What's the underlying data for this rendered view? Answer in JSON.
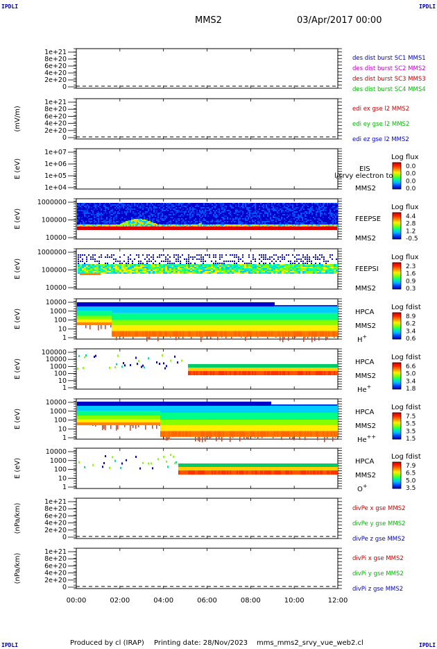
{
  "header": {
    "corner_tl": "IPDLI",
    "corner_tr": "IPDLI",
    "corner_bl": "IPDLI",
    "corner_br": "IPDLI",
    "spacecraft": "MMS2",
    "date": "03/Apr/2017 00:00"
  },
  "footer": {
    "produced_by": "Produced by cl (IRAP)",
    "printing_date": "Printing date: 28/Nov/2023",
    "filename": "mms_mms2_srvy_vue_web2.cl"
  },
  "colors": {
    "blue": "#0000cc",
    "magenta": "#cc00cc",
    "red": "#cc0000",
    "green": "#00bb00"
  },
  "chart_data": [
    {
      "type": "line",
      "ylabel": "",
      "yticks": [
        "1e+21",
        "8e+20",
        "6e+20",
        "4e+20",
        "2e+20",
        "0"
      ],
      "ylim": [
        0,
        1e+21
      ],
      "legend": [
        {
          "text": "des dist burst SC1 MMS1",
          "color": "#0000cc"
        },
        {
          "text": "des dist burst SC2 MMS2",
          "color": "#cc00cc"
        },
        {
          "text": "des dist burst SC3 MMS3",
          "color": "#cc0000"
        },
        {
          "text": "des dist burst SC4 MMS4",
          "color": "#00bb00"
        }
      ]
    },
    {
      "type": "line",
      "ylabel": "(mV/m)",
      "yticks": [
        "1e+21",
        "8e+20",
        "6e+20",
        "4e+20",
        "2e+20",
        "0"
      ],
      "ylim": [
        0,
        1e+21
      ],
      "legend": [
        {
          "text": "edi ex gse l2 MMS2",
          "color": "#cc0000"
        },
        {
          "text": "edi ey gse l2 MMS2",
          "color": "#00bb00"
        },
        {
          "text": "edi ez gse l2 MMS2",
          "color": "#0000cc"
        }
      ]
    },
    {
      "type": "heatmap",
      "ylabel": "E (eV)",
      "yticks": [
        "1e+07",
        "1e+06",
        "1e+05",
        "1e+04"
      ],
      "instrument": "EIS",
      "extra_label": "l/srvy electron to",
      "spacecraft": "MMS2",
      "colorbar_title": "Log flux",
      "colorbar_ticks": [
        "0.0",
        "0.0",
        "0.0",
        "0.0"
      ]
    },
    {
      "type": "heatmap",
      "ylabel": "E (eV)",
      "yticks": [
        "1000000",
        "100000",
        "10000"
      ],
      "instrument": "FEEPSE",
      "spacecraft": "MMS2",
      "colorbar_title": "Log flux",
      "colorbar_ticks": [
        "4.4",
        "2.8",
        "1.2",
        "-0.5"
      ]
    },
    {
      "type": "heatmap",
      "ylabel": "E (eV)",
      "yticks": [
        "1000000",
        "100000",
        "10000"
      ],
      "instrument": "FEEPSI",
      "spacecraft": "MMS2",
      "colorbar_title": "Log flux",
      "colorbar_ticks": [
        "2.3",
        "1.6",
        "0.9",
        "0.3"
      ]
    },
    {
      "type": "heatmap",
      "ylabel": "E (eV)",
      "yticks": [
        "10000",
        "1000",
        "100",
        "10",
        "1"
      ],
      "instrument": "HPCA",
      "spacecraft": "MMS2",
      "species": "H",
      "species_sup": "+",
      "colorbar_title": "Log fdist",
      "colorbar_ticks": [
        "8.9",
        "6.2",
        "3.4",
        "0.6"
      ]
    },
    {
      "type": "heatmap",
      "ylabel": "E (eV)",
      "yticks": [
        "100000",
        "10000",
        "1000",
        "100",
        "10",
        "1"
      ],
      "instrument": "HPCA",
      "spacecraft": "MMS2",
      "species": "He",
      "species_sup": "+",
      "colorbar_title": "Log fdist",
      "colorbar_ticks": [
        "6.6",
        "5.0",
        "3.4",
        "1.8"
      ]
    },
    {
      "type": "heatmap",
      "ylabel": "E (eV)",
      "yticks": [
        "10000",
        "1000",
        "100",
        "10",
        "1"
      ],
      "instrument": "HPCA",
      "spacecraft": "MMS2",
      "species": "He",
      "species_sup": "++",
      "colorbar_title": "Log fdist",
      "colorbar_ticks": [
        "7.5",
        "5.5",
        "3.5",
        "1.5"
      ]
    },
    {
      "type": "heatmap",
      "ylabel": "E (eV)",
      "yticks": [
        "10000",
        "1000",
        "100",
        "10",
        "1"
      ],
      "instrument": "HPCA",
      "spacecraft": "MMS2",
      "species": "O",
      "species_sup": "+",
      "colorbar_title": "Log fdist",
      "colorbar_ticks": [
        "7.9",
        "6.5",
        "5.0",
        "3.5"
      ]
    },
    {
      "type": "line",
      "ylabel": "(nPa/km)",
      "yticks": [
        "1e+21",
        "8e+20",
        "6e+20",
        "4e+20",
        "2e+20",
        "0"
      ],
      "ylim": [
        0,
        1e+21
      ],
      "legend": [
        {
          "text": "divPe x gse MMS2",
          "color": "#cc0000"
        },
        {
          "text": "divPe y gse MMS2",
          "color": "#00bb00"
        },
        {
          "text": "divPe z gse MMS2",
          "color": "#0000cc"
        }
      ]
    },
    {
      "type": "line",
      "ylabel": "(nPa/km)",
      "yticks": [
        "1e+21",
        "8e+20",
        "6e+20",
        "4e+20",
        "2e+20",
        "0"
      ],
      "ylim": [
        0,
        1e+21
      ],
      "legend": [
        {
          "text": "divPi x gse MMS2",
          "color": "#cc0000"
        },
        {
          "text": "divPi y gse MMS2",
          "color": "#00bb00"
        },
        {
          "text": "divPi z gse MMS2",
          "color": "#0000cc"
        }
      ],
      "xticks": [
        "00:00",
        "02:00",
        "04:00",
        "06:00",
        "08:00",
        "10:00",
        "12:00"
      ]
    }
  ]
}
